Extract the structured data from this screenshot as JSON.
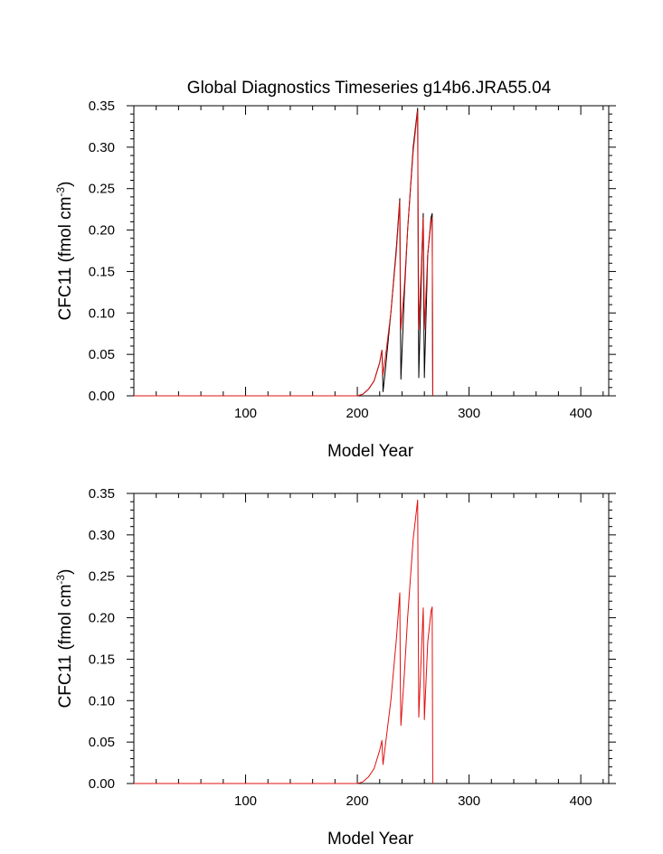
{
  "title": "Global Diagnostics Timeseries g14b6.JRA55.04",
  "chart_data": [
    {
      "type": "line",
      "xlabel": "Model Year",
      "ylabel_main": "CFC11 (fmol cm",
      "ylabel_sup": "-3",
      "ylabel_end": ")",
      "xlim": [
        0,
        425
      ],
      "ylim": [
        0,
        0.35
      ],
      "xticks": [
        100,
        200,
        300,
        400
      ],
      "xtick_labels": [
        "100",
        "200",
        "300",
        "400"
      ],
      "yticks": [
        0,
        0.05,
        0.1,
        0.15,
        0.2,
        0.25,
        0.3,
        0.35
      ],
      "ytick_labels": [
        "0.00",
        "0.05",
        "0.10",
        "0.15",
        "0.20",
        "0.25",
        "0.30",
        "0.35"
      ],
      "series": [
        {
          "color": "#000000",
          "x": [
            0,
            200,
            205,
            210,
            215,
            220,
            222,
            222.5,
            223,
            225,
            230,
            235,
            238,
            238.5,
            239,
            242,
            245,
            250,
            254,
            254.5,
            255,
            258,
            259,
            259.5,
            260,
            263,
            266,
            267,
            267.5
          ],
          "y": [
            0,
            0,
            0.002,
            0.008,
            0.018,
            0.04,
            0.055,
            0.035,
            0.005,
            0.03,
            0.1,
            0.18,
            0.238,
            0.1,
            0.02,
            0.12,
            0.2,
            0.3,
            0.347,
            0.15,
            0.022,
            0.18,
            0.22,
            0.1,
            0.022,
            0.17,
            0.215,
            0.22,
            0
          ]
        },
        {
          "color": "#e01010",
          "x": [
            0,
            200,
            205,
            210,
            215,
            220,
            222,
            222.5,
            223,
            225,
            230,
            235,
            238,
            238.5,
            239,
            242,
            245,
            250,
            254,
            254.5,
            255,
            258,
            259,
            259.5,
            260,
            263,
            266,
            267,
            267.5
          ],
          "y": [
            0,
            0,
            0.002,
            0.008,
            0.018,
            0.04,
            0.055,
            0.04,
            0.025,
            0.045,
            0.1,
            0.175,
            0.235,
            0.14,
            0.08,
            0.13,
            0.2,
            0.295,
            0.344,
            0.2,
            0.08,
            0.18,
            0.215,
            0.16,
            0.08,
            0.17,
            0.21,
            0.215,
            0
          ]
        }
      ]
    },
    {
      "type": "line",
      "xlabel": "Model Year",
      "ylabel_main": "CFC11 (fmol cm",
      "ylabel_sup": "-3",
      "ylabel_end": ")",
      "xlim": [
        0,
        425
      ],
      "ylim": [
        0,
        0.35
      ],
      "xticks": [
        100,
        200,
        300,
        400
      ],
      "xtick_labels": [
        "100",
        "200",
        "300",
        "400"
      ],
      "yticks": [
        0,
        0.05,
        0.1,
        0.15,
        0.2,
        0.25,
        0.3,
        0.35
      ],
      "ytick_labels": [
        "0.00",
        "0.05",
        "0.10",
        "0.15",
        "0.20",
        "0.25",
        "0.30",
        "0.35"
      ],
      "series": [
        {
          "color": "#e01010",
          "x": [
            0,
            200,
            205,
            210,
            215,
            220,
            222,
            222.5,
            223,
            225,
            230,
            235,
            238,
            238.5,
            239,
            242,
            245,
            250,
            254,
            254.5,
            255,
            258,
            259,
            259.5,
            260,
            263,
            266,
            267,
            267.5
          ],
          "y": [
            0,
            0,
            0.002,
            0.008,
            0.018,
            0.04,
            0.052,
            0.035,
            0.023,
            0.045,
            0.1,
            0.175,
            0.23,
            0.12,
            0.07,
            0.13,
            0.2,
            0.295,
            0.342,
            0.2,
            0.08,
            0.18,
            0.212,
            0.15,
            0.077,
            0.17,
            0.208,
            0.213,
            0
          ]
        }
      ]
    }
  ]
}
